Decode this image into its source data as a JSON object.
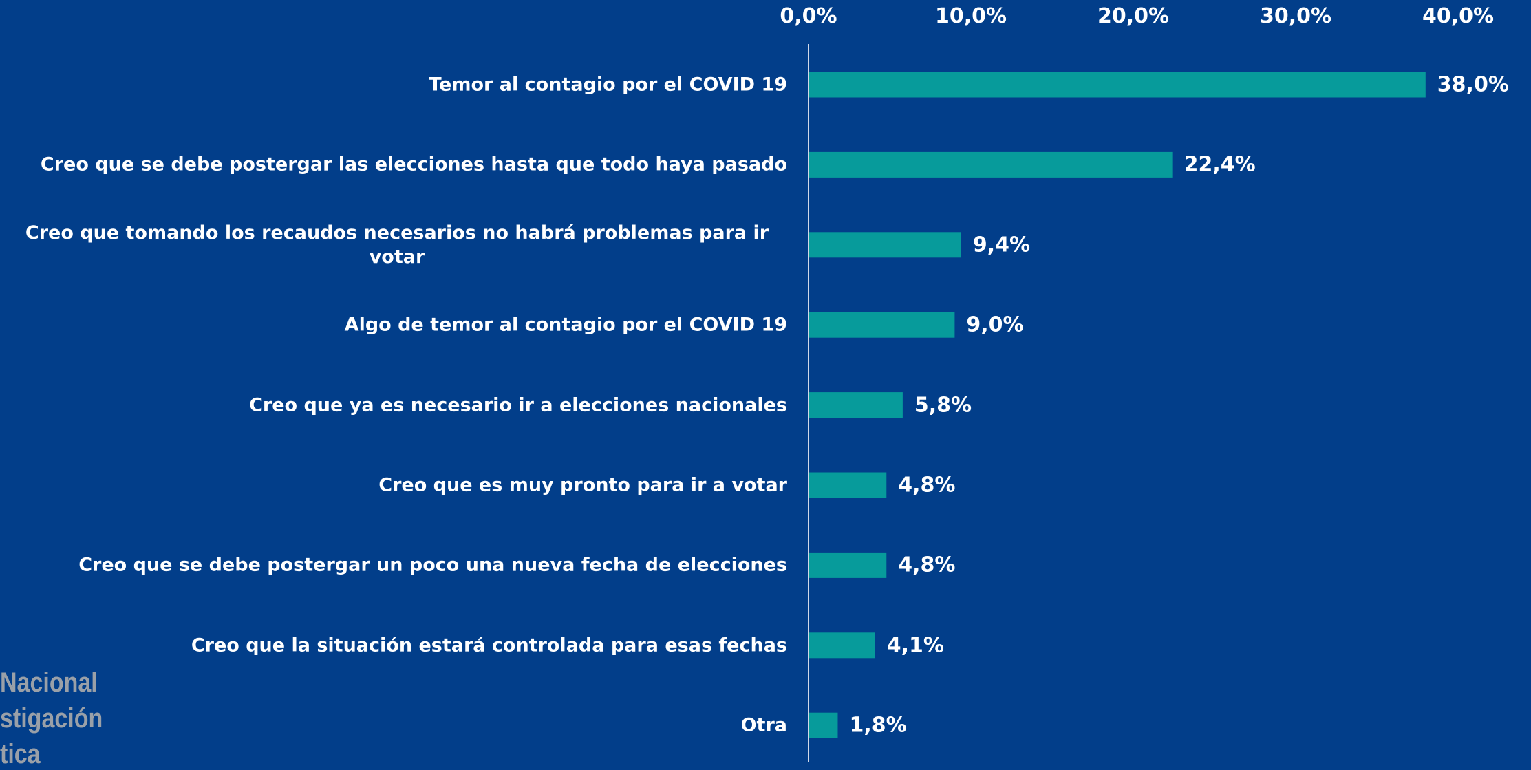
{
  "chart_data": {
    "type": "barh",
    "categories": [
      "Temor al contagio por el COVID 19",
      "Creo que se debe postergar las elecciones hasta que todo haya pasado",
      "Creo que tomando los recaudos necesarios no habrá problemas para ir votar",
      "Algo de temor al contagio por el COVID 19",
      "Creo que ya es necesario ir a elecciones nacionales",
      "Creo que es muy pronto para ir a votar",
      "Creo que se debe postergar un poco una nueva fecha de elecciones",
      "Creo que la situación estará controlada para esas fechas",
      "Otra"
    ],
    "values": [
      38.0,
      22.4,
      9.4,
      9.0,
      5.8,
      4.8,
      4.8,
      4.1,
      1.8
    ],
    "value_labels": [
      "38,0%",
      "22,4%",
      "9,4%",
      "9,0%",
      "5,8%",
      "4,8%",
      "4,8%",
      "4,1%",
      "1,8%"
    ],
    "color": "#079b9b",
    "xlim": [
      0,
      40
    ],
    "xticks": [
      {
        "value": 0,
        "label": "0,0%"
      },
      {
        "value": 10,
        "label": "10,0%"
      },
      {
        "value": 20,
        "label": "20,0%"
      },
      {
        "value": 30,
        "label": "30,0%"
      },
      {
        "value": 40,
        "label": "40,0%"
      }
    ]
  },
  "watermark": [
    "Nacional",
    "stigación",
    "tica"
  ]
}
